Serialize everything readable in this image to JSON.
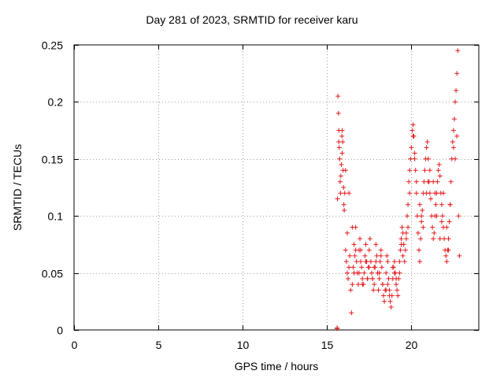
{
  "chart_data": {
    "type": "scatter",
    "title": "Day 281 of 2023, SRMTID for receiver karu",
    "xlabel": "GPS time / hours",
    "ylabel": "SRMTID / TECUs",
    "xlim": [
      0,
      24
    ],
    "ylim": [
      0,
      0.25
    ],
    "grid": true,
    "marker": "+",
    "marker_color": "#e41a1c",
    "x_ticks": [
      {
        "value": 0,
        "label": "0"
      },
      {
        "value": 5,
        "label": "5"
      },
      {
        "value": 10,
        "label": "10"
      },
      {
        "value": 15,
        "label": "15"
      },
      {
        "value": 20,
        "label": "20"
      }
    ],
    "y_ticks": [
      {
        "value": 0,
        "label": "0"
      },
      {
        "value": 0.05,
        "label": "0.05"
      },
      {
        "value": 0.1,
        "label": "0.1"
      },
      {
        "value": 0.15,
        "label": "0.15"
      },
      {
        "value": 0.2,
        "label": "0.2"
      },
      {
        "value": 0.25,
        "label": "0.25"
      }
    ],
    "series": [
      {
        "name": "SRMTID",
        "x": [
          15.6,
          15.6,
          15.62,
          15.65,
          15.68,
          15.7,
          15.72,
          15.75,
          15.78,
          15.8,
          15.82,
          15.85,
          15.88,
          15.9,
          15.93,
          15.95,
          15.98,
          16.0,
          16.02,
          16.05,
          16.1,
          16.15,
          16.2,
          16.25,
          16.3,
          16.35,
          16.4,
          16.45,
          16.5,
          16.55,
          16.6,
          16.65,
          16.7,
          16.75,
          16.8,
          16.85,
          16.9,
          16.95,
          17.0,
          17.05,
          17.1,
          17.15,
          17.2,
          17.25,
          17.3,
          17.35,
          17.4,
          17.45,
          17.5,
          17.55,
          17.6,
          17.65,
          17.7,
          17.75,
          17.8,
          17.85,
          17.9,
          17.95,
          18.0,
          18.05,
          18.1,
          18.15,
          18.2,
          18.25,
          18.3,
          18.35,
          18.4,
          18.45,
          18.5,
          18.55,
          18.6,
          18.65,
          18.7,
          18.75,
          18.8,
          18.85,
          18.9,
          18.95,
          19.0,
          19.05,
          19.1,
          19.15,
          19.2,
          19.25,
          19.3,
          19.35,
          19.4,
          19.45,
          19.5,
          19.55,
          19.6,
          19.65,
          19.7,
          19.75,
          19.8,
          19.85,
          19.9,
          19.95,
          20.0,
          20.05,
          20.1,
          20.15,
          20.2,
          20.25,
          20.3,
          20.35,
          20.4,
          20.45,
          20.5,
          20.55,
          20.6,
          20.65,
          20.7,
          20.75,
          20.8,
          20.85,
          20.9,
          20.95,
          21.0,
          21.05,
          21.1,
          21.15,
          21.2,
          21.25,
          21.3,
          21.35,
          21.4,
          21.45,
          21.5,
          21.55,
          21.6,
          21.65,
          21.7,
          21.75,
          21.8,
          21.85,
          21.9,
          21.95,
          22.0,
          22.05,
          22.1,
          22.15,
          22.2,
          22.25,
          22.3,
          22.35,
          22.4,
          22.45,
          22.5,
          22.55,
          22.6,
          22.65,
          22.7,
          22.75,
          22.8,
          22.85,
          15.7,
          15.9,
          16.1,
          16.3,
          16.5,
          16.7,
          16.9,
          17.1,
          17.3,
          17.5,
          17.7,
          17.9,
          18.1,
          18.3,
          18.5,
          18.7,
          18.9,
          19.1,
          19.3,
          19.5,
          19.7,
          19.9,
          20.1,
          20.3,
          20.5,
          20.7,
          20.9,
          21.1,
          21.3,
          21.5,
          21.7,
          21.9,
          22.1,
          22.3,
          22.5,
          22.7,
          16.2,
          16.6,
          17.0,
          17.4,
          17.8,
          18.2,
          18.6,
          19.0,
          19.4,
          19.8,
          20.2,
          20.6,
          21.0,
          21.4,
          21.8,
          22.2,
          22.6
        ],
        "y": [
          0.001,
          0.002,
          0.115,
          0.205,
          0.19,
          0.175,
          0.16,
          0.15,
          0.13,
          0.12,
          0.135,
          0.145,
          0.17,
          0.175,
          0.165,
          0.14,
          0.125,
          0.11,
          0.105,
          0.12,
          0.07,
          0.06,
          0.05,
          0.045,
          0.055,
          0.065,
          0.035,
          0.015,
          0.04,
          0.055,
          0.075,
          0.065,
          0.09,
          0.06,
          0.05,
          0.04,
          0.07,
          0.08,
          0.06,
          0.055,
          0.045,
          0.04,
          0.05,
          0.065,
          0.075,
          0.06,
          0.045,
          0.055,
          0.07,
          0.08,
          0.06,
          0.05,
          0.045,
          0.035,
          0.04,
          0.055,
          0.075,
          0.065,
          0.05,
          0.035,
          0.045,
          0.06,
          0.07,
          0.055,
          0.04,
          0.03,
          0.025,
          0.035,
          0.05,
          0.065,
          0.06,
          0.045,
          0.035,
          0.025,
          0.02,
          0.03,
          0.045,
          0.055,
          0.06,
          0.05,
          0.04,
          0.035,
          0.03,
          0.045,
          0.06,
          0.07,
          0.08,
          0.09,
          0.085,
          0.075,
          0.06,
          0.07,
          0.085,
          0.1,
          0.11,
          0.13,
          0.14,
          0.15,
          0.16,
          0.175,
          0.18,
          0.17,
          0.155,
          0.14,
          0.12,
          0.1,
          0.085,
          0.07,
          0.06,
          0.08,
          0.095,
          0.105,
          0.12,
          0.13,
          0.14,
          0.15,
          0.16,
          0.165,
          0.15,
          0.13,
          0.12,
          0.115,
          0.1,
          0.09,
          0.08,
          0.085,
          0.1,
          0.11,
          0.12,
          0.13,
          0.14,
          0.145,
          0.135,
          0.12,
          0.11,
          0.1,
          0.09,
          0.08,
          0.07,
          0.065,
          0.06,
          0.07,
          0.08,
          0.095,
          0.11,
          0.13,
          0.15,
          0.165,
          0.175,
          0.185,
          0.2,
          0.21,
          0.225,
          0.245,
          0.1,
          0.065,
          0.165,
          0.155,
          0.14,
          0.12,
          0.09,
          0.07,
          0.05,
          0.04,
          0.06,
          0.055,
          0.045,
          0.06,
          0.05,
          0.04,
          0.035,
          0.03,
          0.055,
          0.045,
          0.05,
          0.065,
          0.08,
          0.12,
          0.17,
          0.13,
          0.11,
          0.09,
          0.12,
          0.14,
          0.13,
          0.1,
          0.08,
          0.12,
          0.09,
          0.11,
          0.16,
          0.17,
          0.085,
          0.05,
          0.07,
          0.045,
          0.055,
          0.065,
          0.04,
          0.05,
          0.075,
          0.09,
          0.15,
          0.1,
          0.13,
          0.12,
          0.095,
          0.07,
          0.15
        ]
      }
    ]
  }
}
